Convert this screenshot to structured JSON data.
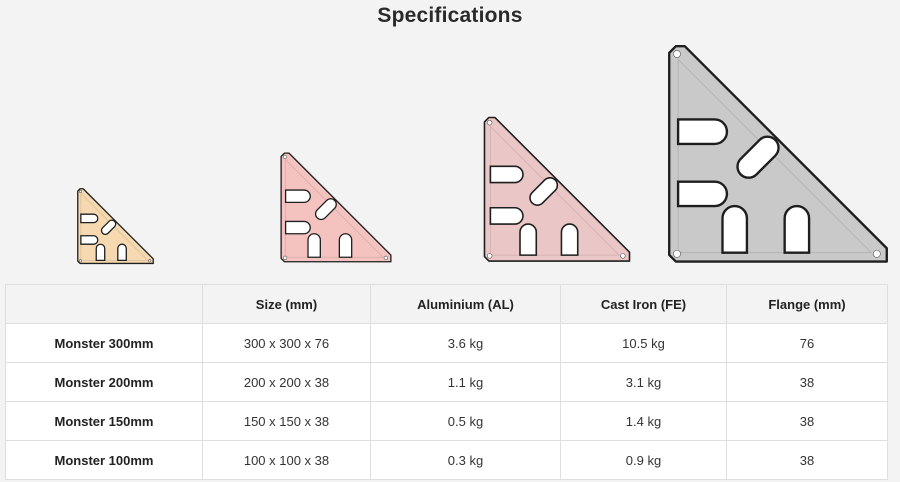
{
  "title": "Specifications",
  "products": [
    {
      "name": "monster-100mm",
      "fill": "#f6d9b0"
    },
    {
      "name": "monster-150mm",
      "fill": "#f4c3c0"
    },
    {
      "name": "monster-200mm",
      "fill": "#ebc6c6"
    },
    {
      "name": "monster-300mm",
      "fill": "#c9c9c9"
    }
  ],
  "table": {
    "headers": [
      "",
      "Size (mm)",
      "Aluminium (AL)",
      "Cast Iron (FE)",
      "Flange (mm)"
    ],
    "rows": [
      {
        "model": "Monster 300mm",
        "size": "300 x 300 x 76",
        "al": "3.6 kg",
        "fe": "10.5 kg",
        "flange": "76"
      },
      {
        "model": "Monster 200mm",
        "size": "200 x 200 x 38",
        "al": "1.1 kg",
        "fe": "3.1 kg",
        "flange": "38"
      },
      {
        "model": "Monster 150mm",
        "size": "150 x 150 x 38",
        "al": "0.5 kg",
        "fe": "1.4 kg",
        "flange": "38"
      },
      {
        "model": "Monster 100mm",
        "size": "100 x 100 x 38",
        "al": "0.3 kg",
        "fe": "0.9 kg",
        "flange": "38"
      }
    ]
  }
}
